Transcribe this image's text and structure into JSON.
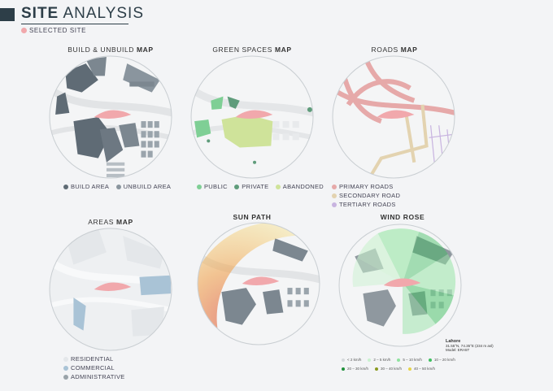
{
  "header": {
    "title_main": "SITE",
    "title_rest": "ANALYSIS",
    "selected_label": "SELECTED SITE",
    "selected_color": "#f1a8ac"
  },
  "maps": {
    "build": {
      "title_a": "BUILD & UNBUILD",
      "title_b": "MAP",
      "legend": [
        {
          "label": "BUILD AREA",
          "color": "#5f6b75"
        },
        {
          "label": "UNBUILD AREA",
          "color": "#8a959e"
        }
      ]
    },
    "green": {
      "title_a": "GREEN SPACES",
      "title_b": "MAP",
      "legend": [
        {
          "label": "PUBLIC",
          "color": "#7fcf95"
        },
        {
          "label": "PRIVATE",
          "color": "#5f9c7b"
        },
        {
          "label": "ABANDONED",
          "color": "#cfe39a"
        }
      ]
    },
    "roads": {
      "title_a": "ROADS",
      "title_b": "MAP",
      "legend": [
        {
          "label": "PRIMARY ROADS",
          "color": "#e6a9a9"
        },
        {
          "label": "SECONDARY ROAD",
          "color": "#e3d3b0"
        },
        {
          "label": "TERTIARY ROADS",
          "color": "#c8b4e0"
        }
      ]
    },
    "areas": {
      "title_a": "AREAS",
      "title_b": "MAP",
      "legend": [
        {
          "label": "RESIDENTIAL",
          "color": "#e4e7ea"
        },
        {
          "label": "COMMERCIAL",
          "color": "#a9c3d6"
        },
        {
          "label": "ADMINISTRATIVE",
          "color": "#9aa3a9"
        }
      ]
    },
    "sun": {
      "title_a": "",
      "title_b": "SUN PATH"
    },
    "wind": {
      "title_a": "",
      "title_b": "WIND ROSE",
      "legend": [
        {
          "label": "< 2 km/h",
          "color": "#d5d9dc"
        },
        {
          "label": "2 – 5 km/h",
          "color": "#c9f2cf"
        },
        {
          "label": "5 – 10 km/h",
          "color": "#8fe39f"
        },
        {
          "label": "10 – 20 km/h",
          "color": "#3fbf5f"
        },
        {
          "label": "20 – 30 km/h",
          "color": "#1f8f3a"
        },
        {
          "label": "30 – 40 km/h",
          "color": "#8a9a20"
        },
        {
          "label": "40 – 50 km/h",
          "color": "#e6d44a"
        }
      ],
      "place_name": "Lahore",
      "place_coords": "31.55°N, 74.35°E (234 m asl)",
      "place_model": "Model: ERA5T"
    }
  }
}
